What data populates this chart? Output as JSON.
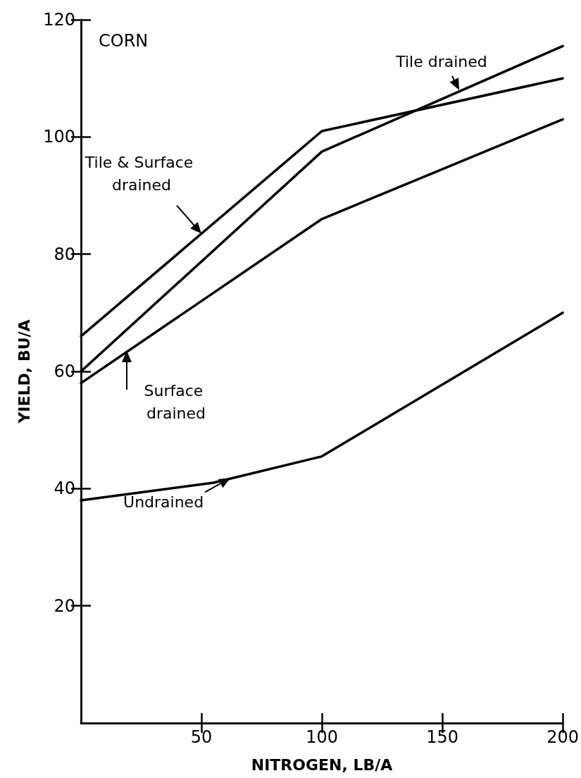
{
  "chart_data": {
    "type": "line",
    "xlabel": "NITROGEN, LB/A",
    "ylabel": "YIELD, BU/A",
    "xlim": [
      0,
      200
    ],
    "xticks": [
      50,
      100,
      150,
      200
    ],
    "ylim": [
      0,
      120
    ],
    "yticks": [
      20,
      40,
      60,
      80,
      100,
      120
    ],
    "grid": false,
    "marker": "none",
    "line_style": "solid",
    "series": [
      {
        "color": "#000000",
        "x": [
          0,
          100,
          200
        ],
        "values": [
          66,
          101,
          110
        ]
      },
      {
        "color": "#000000",
        "x": [
          0,
          100,
          200
        ],
        "values": [
          60,
          97.5,
          115.5
        ]
      },
      {
        "color": "#000000",
        "x": [
          0,
          100,
          200
        ],
        "values": [
          58,
          86,
          103
        ]
      },
      {
        "color": "#000000",
        "x": [
          0,
          55,
          100,
          200
        ],
        "values": [
          38,
          41,
          45.5,
          70
        ]
      }
    ],
    "annotations": [
      "CORN",
      {
        "text": "Tile drained",
        "x": 157,
        "y": 108
      },
      {
        "text": "Tile & Surface drained",
        "x": 50,
        "y": 83.5
      },
      {
        "text": "Surface drained",
        "x": 19,
        "y": 63.5
      },
      {
        "text": "Undrained",
        "x": 62,
        "y": 41.8
      }
    ]
  }
}
